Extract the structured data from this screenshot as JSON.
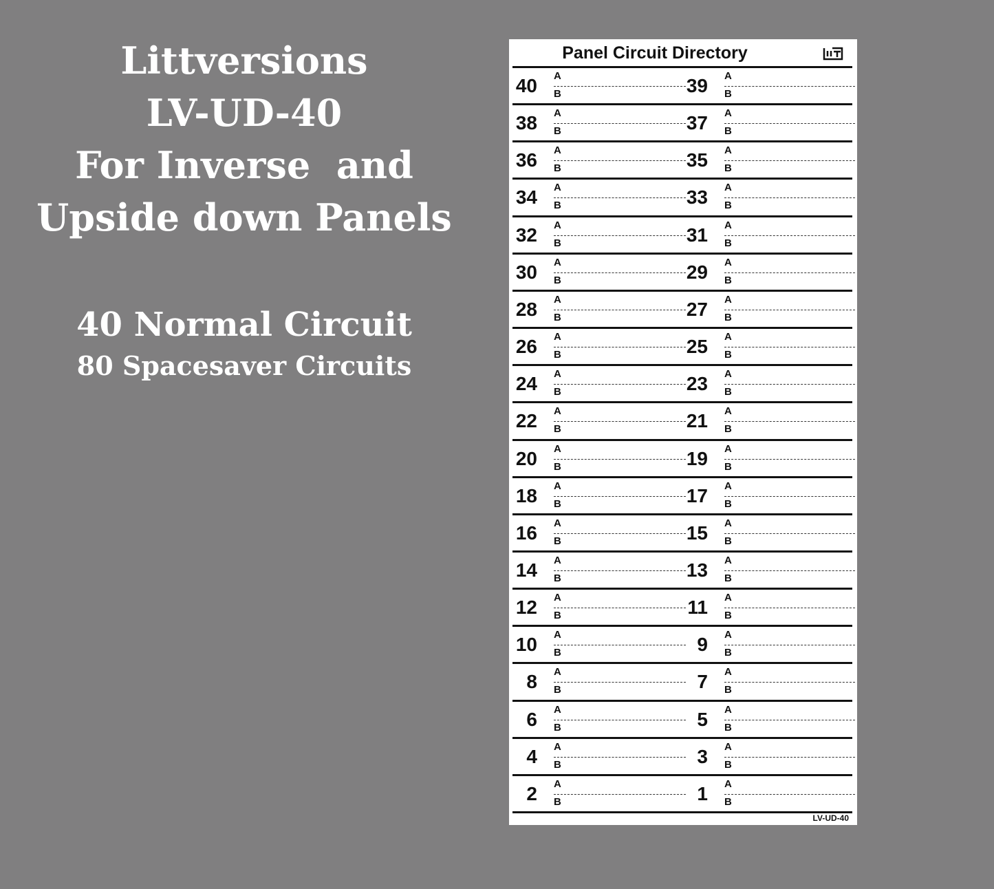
{
  "promo": {
    "lines": [
      "Littversions",
      "LV-UD-40",
      "For Inverse  and",
      "Upside down Panels"
    ],
    "normal": "40 Normal Circuit",
    "spacesaver": "80 Spacesaver Circuits"
  },
  "panel": {
    "title": "Panel Circuit Directory",
    "logo": "LIT",
    "code": "LV-UD-40",
    "slot_labels": [
      "A",
      "B"
    ],
    "rows": [
      [
        "40",
        "39"
      ],
      [
        "38",
        "37"
      ],
      [
        "36",
        "35"
      ],
      [
        "34",
        "33"
      ],
      [
        "32",
        "31"
      ],
      [
        "30",
        "29"
      ],
      [
        "28",
        "27"
      ],
      [
        "26",
        "25"
      ],
      [
        "24",
        "23"
      ],
      [
        "22",
        "21"
      ],
      [
        "20",
        "19"
      ],
      [
        "18",
        "17"
      ],
      [
        "16",
        "15"
      ],
      [
        "14",
        "13"
      ],
      [
        "12",
        "11"
      ],
      [
        "10",
        "9"
      ],
      [
        "8",
        "7"
      ],
      [
        "6",
        "5"
      ],
      [
        "4",
        "3"
      ],
      [
        "2",
        "1"
      ]
    ]
  }
}
